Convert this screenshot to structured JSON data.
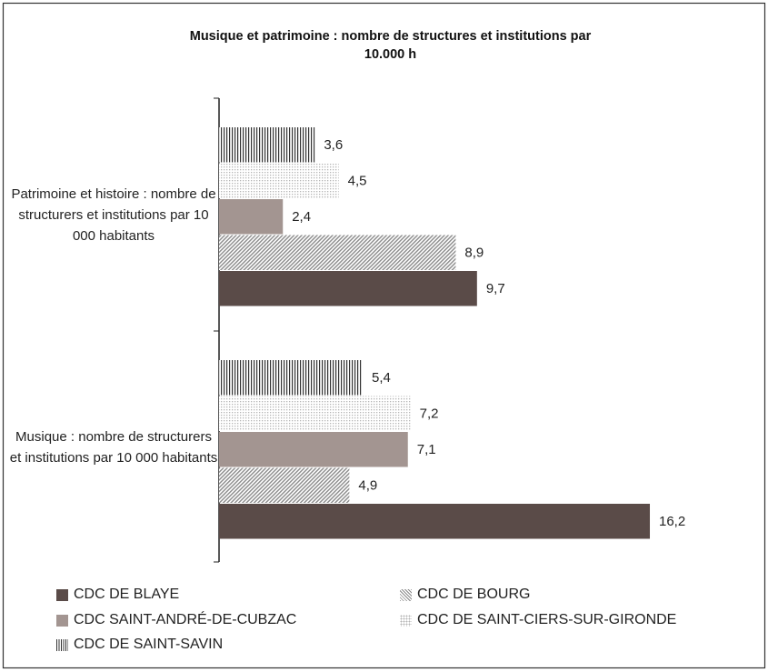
{
  "chart_data": {
    "type": "barh",
    "title": "Musique et patrimoine : nombre de structures et institutions par 10.000 h",
    "categories": [
      "Patrimoine et histoire : nombre de structurers et institutions par 10 000 habitants",
      "Musique : nombre de structurers et institutions par 10 000 habitants"
    ],
    "series": [
      {
        "name": "CDC DE BLAYE",
        "color": "#5a4b48",
        "values": [
          9.7,
          16.2
        ],
        "value_labels": [
          "9,7",
          "16,2"
        ]
      },
      {
        "name": "CDC DE BOURG",
        "color": "#9a9a9a",
        "values": [
          8.9,
          4.9
        ],
        "value_labels": [
          "8,9",
          "4,9"
        ]
      },
      {
        "name": "CDC SAINT-ANDRÉ-DE-CUBZAC",
        "color": "#a39591",
        "values": [
          2.4,
          7.1
        ],
        "value_labels": [
          "2,4",
          "7,1"
        ]
      },
      {
        "name": "CDC DE SAINT-CIERS-SUR-GIRONDE",
        "color": "#c8c8c8",
        "values": [
          4.5,
          7.2
        ],
        "value_labels": [
          "4,5",
          "7,2"
        ]
      },
      {
        "name": "CDC DE SAINT-SAVIN",
        "color": "#333333",
        "values": [
          3.6,
          5.4
        ],
        "value_labels": [
          "3,6",
          "5,4"
        ]
      }
    ]
  }
}
